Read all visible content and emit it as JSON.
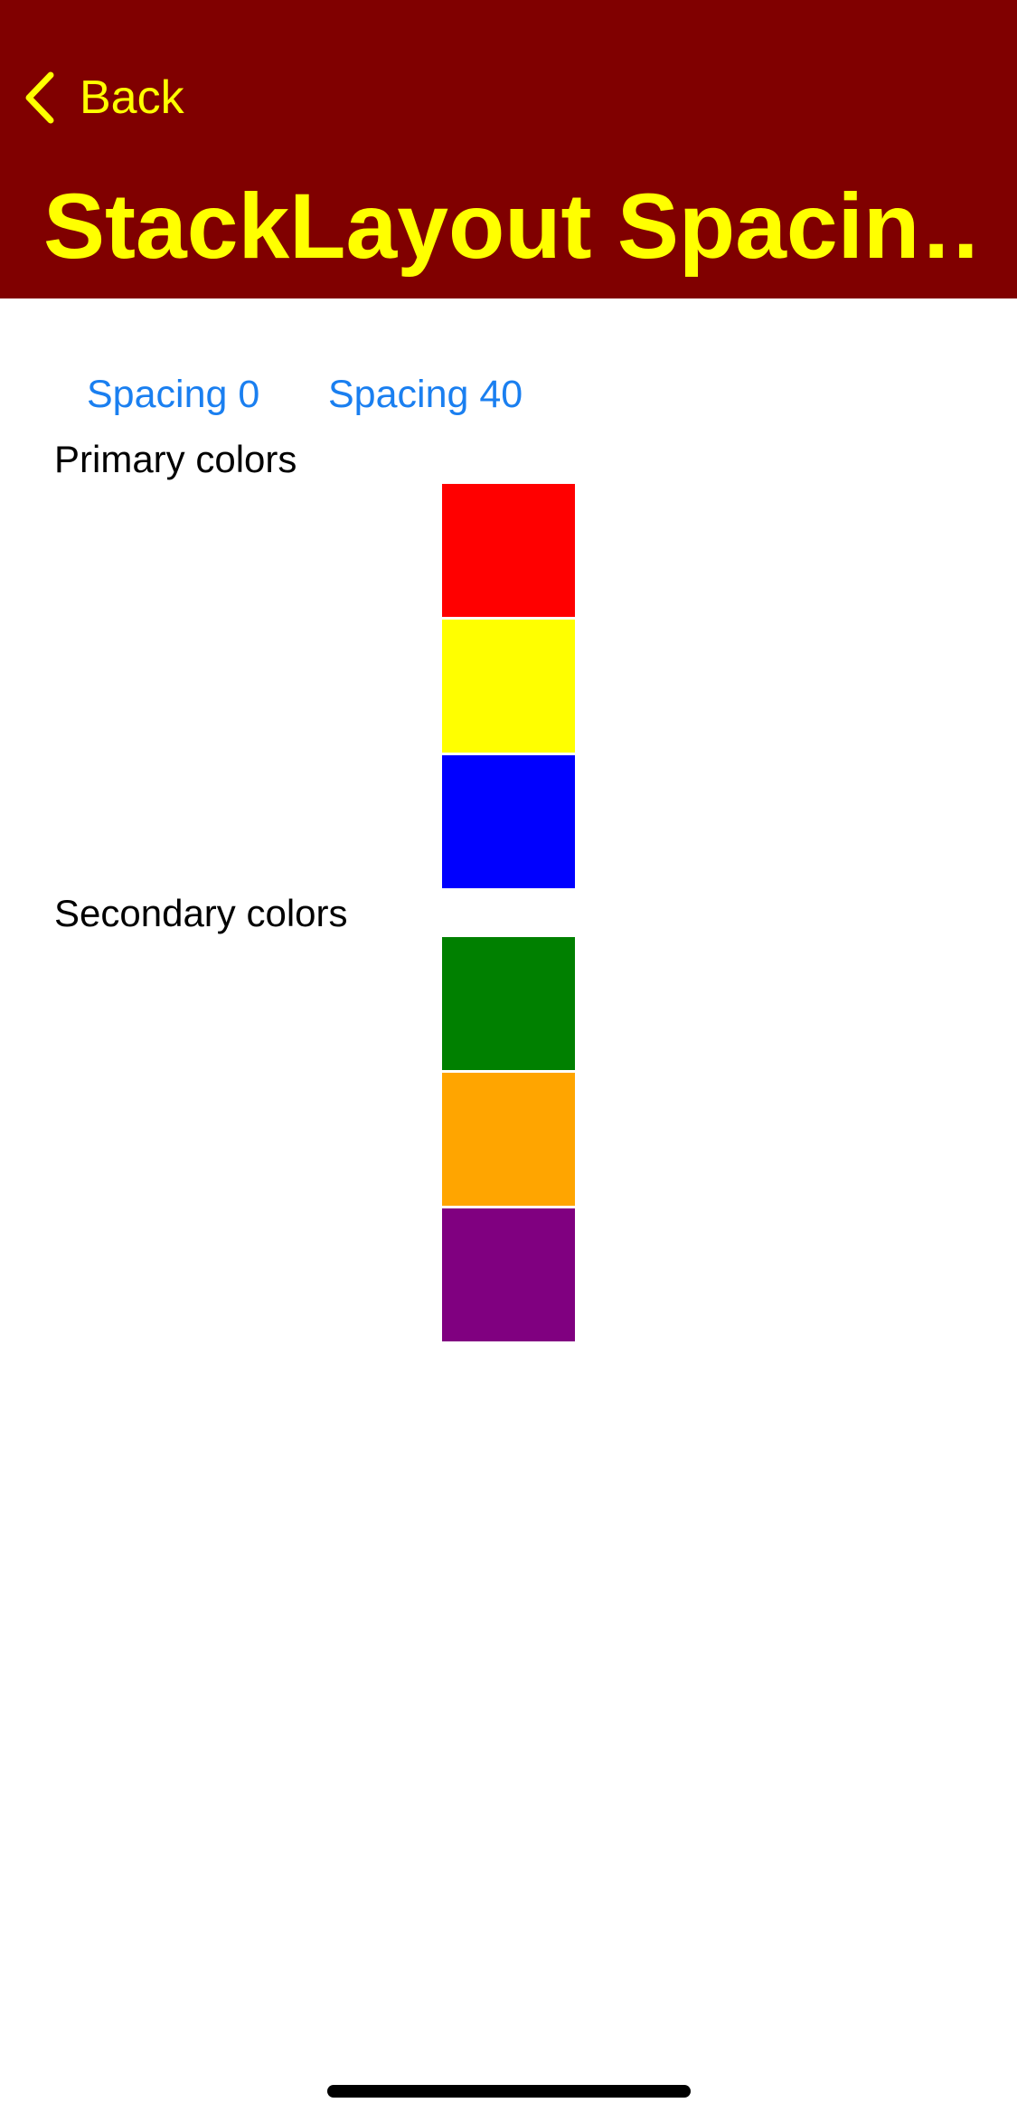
{
  "nav": {
    "back_label": "Back",
    "back_icon": "chevron-left-icon",
    "title": "StackLayout Spacin…",
    "background_color": "#800000",
    "text_color": "#ffff00"
  },
  "toolbar": {
    "spacing_0_label": "Spacing 0",
    "spacing_40_label": "Spacing 40",
    "link_color": "#1a7ff0"
  },
  "sections": [
    {
      "label": "Primary colors",
      "swatches": [
        {
          "name": "red",
          "color": "#ff0000"
        },
        {
          "name": "yellow",
          "color": "#ffff00"
        },
        {
          "name": "blue",
          "color": "#0000ff"
        }
      ]
    },
    {
      "label": "Secondary colors",
      "swatches": [
        {
          "name": "green",
          "color": "#008000"
        },
        {
          "name": "orange",
          "color": "#ffa500"
        },
        {
          "name": "purple",
          "color": "#800080"
        }
      ]
    }
  ]
}
